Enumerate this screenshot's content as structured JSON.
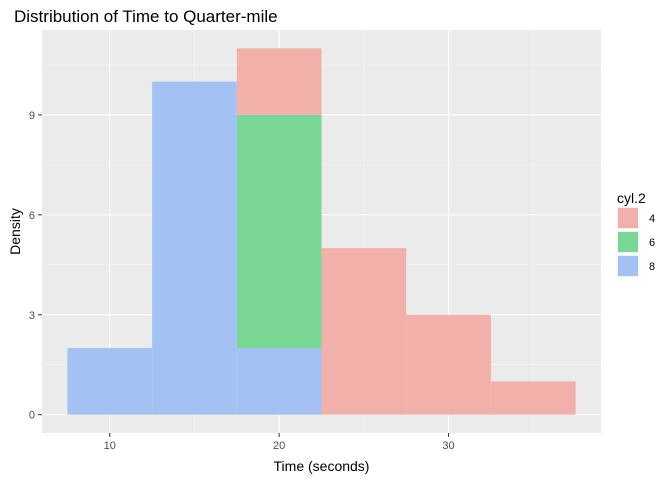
{
  "chart_data": {
    "type": "bar",
    "title": "Distribution of Time to Quarter-mile",
    "xlabel": "Time (seconds)",
    "ylabel": "Density",
    "xlim": [
      6,
      39
    ],
    "ylim": [
      -0.55,
      11.55
    ],
    "x_ticks": [
      10,
      20,
      30
    ],
    "y_ticks": [
      0,
      3,
      6,
      9
    ],
    "grid": true,
    "stacked": true,
    "bin_width": 5,
    "bin_centers": [
      10,
      15,
      20,
      25,
      30,
      35
    ],
    "legend": {
      "title": "cyl.2",
      "position": "right"
    },
    "series": [
      {
        "name": "8",
        "color": "#a3c1f3",
        "values": [
          2,
          10,
          2,
          0,
          0,
          0
        ]
      },
      {
        "name": "6",
        "color": "#7bd796",
        "values": [
          0,
          0,
          7,
          0,
          0,
          0
        ]
      },
      {
        "name": "4",
        "color": "#f2b0ab",
        "values": [
          0,
          0,
          2,
          5,
          3,
          1
        ]
      }
    ],
    "legend_order": [
      "4",
      "6",
      "8"
    ]
  }
}
